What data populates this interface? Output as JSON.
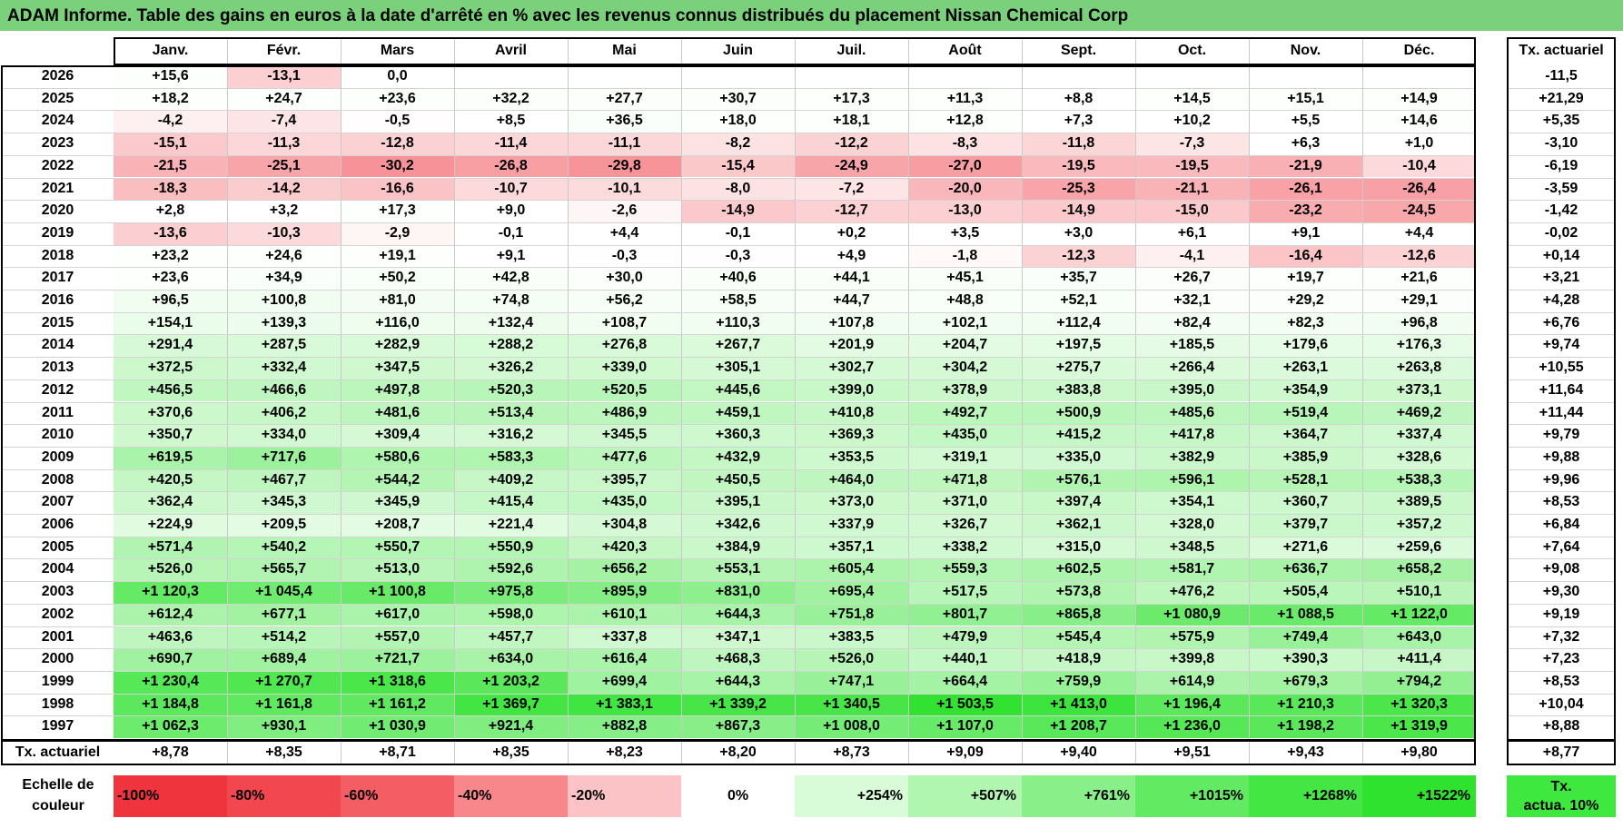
{
  "title": "ADAM Informe. Table des gains en euros à la date d'arrêté en % avec les revenus connus distribués du placement Nissan Chemical Corp",
  "chart_data": {
    "type": "table",
    "months": [
      "Janv.",
      "Févr.",
      "Mars",
      "Avril",
      "Mai",
      "Juin",
      "Juil.",
      "Août",
      "Sept.",
      "Oct.",
      "Nov.",
      "Déc."
    ],
    "rate_header": "Tx. actuariel",
    "rows": [
      {
        "year": "2026",
        "cells": [
          "+15,6",
          "-13,1",
          "0,0",
          "",
          "",
          "",
          "",
          "",
          "",
          "",
          "",
          ""
        ],
        "rate": "-11,5"
      },
      {
        "year": "2025",
        "cells": [
          "+18,2",
          "+24,7",
          "+23,6",
          "+32,2",
          "+27,7",
          "+30,7",
          "+17,3",
          "+11,3",
          "+8,8",
          "+14,5",
          "+15,1",
          "+14,9"
        ],
        "rate": "+21,29"
      },
      {
        "year": "2024",
        "cells": [
          "-4,2",
          "-7,4",
          "-0,5",
          "+8,5",
          "+36,5",
          "+18,0",
          "+18,1",
          "+12,8",
          "+7,3",
          "+10,2",
          "+5,5",
          "+14,6"
        ],
        "rate": "+5,35"
      },
      {
        "year": "2023",
        "cells": [
          "-15,1",
          "-11,3",
          "-12,8",
          "-11,4",
          "-11,1",
          "-8,2",
          "-12,2",
          "-8,3",
          "-11,8",
          "-7,3",
          "+6,3",
          "+1,0"
        ],
        "rate": "-3,10"
      },
      {
        "year": "2022",
        "cells": [
          "-21,5",
          "-25,1",
          "-30,2",
          "-26,8",
          "-29,8",
          "-15,4",
          "-24,9",
          "-27,0",
          "-19,5",
          "-19,5",
          "-21,9",
          "-10,4"
        ],
        "rate": "-6,19"
      },
      {
        "year": "2021",
        "cells": [
          "-18,3",
          "-14,2",
          "-16,6",
          "-10,7",
          "-10,1",
          "-8,0",
          "-7,2",
          "-20,0",
          "-25,3",
          "-21,1",
          "-26,1",
          "-26,4"
        ],
        "rate": "-3,59"
      },
      {
        "year": "2020",
        "cells": [
          "+2,8",
          "+3,2",
          "+17,3",
          "+9,0",
          "-2,6",
          "-14,9",
          "-12,7",
          "-13,0",
          "-14,9",
          "-15,0",
          "-23,2",
          "-24,5"
        ],
        "rate": "-1,42"
      },
      {
        "year": "2019",
        "cells": [
          "-13,6",
          "-10,3",
          "-2,9",
          "-0,1",
          "+4,4",
          "-0,1",
          "+0,2",
          "+3,5",
          "+3,0",
          "+6,1",
          "+9,1",
          "+4,4"
        ],
        "rate": "-0,02"
      },
      {
        "year": "2018",
        "cells": [
          "+23,2",
          "+24,6",
          "+19,1",
          "+9,1",
          "-0,3",
          "-0,3",
          "+4,9",
          "-1,8",
          "-12,3",
          "-4,1",
          "-16,4",
          "-12,6"
        ],
        "rate": "+0,14"
      },
      {
        "year": "2017",
        "cells": [
          "+23,6",
          "+34,9",
          "+50,2",
          "+42,8",
          "+30,0",
          "+40,6",
          "+44,1",
          "+45,1",
          "+35,7",
          "+26,7",
          "+19,7",
          "+21,6"
        ],
        "rate": "+3,21"
      },
      {
        "year": "2016",
        "cells": [
          "+96,5",
          "+100,8",
          "+81,0",
          "+74,8",
          "+56,2",
          "+58,5",
          "+44,7",
          "+48,8",
          "+52,1",
          "+32,1",
          "+29,2",
          "+29,1"
        ],
        "rate": "+4,28"
      },
      {
        "year": "2015",
        "cells": [
          "+154,1",
          "+139,3",
          "+116,0",
          "+132,4",
          "+108,7",
          "+110,3",
          "+107,8",
          "+102,1",
          "+112,4",
          "+82,4",
          "+82,3",
          "+96,8"
        ],
        "rate": "+6,76"
      },
      {
        "year": "2014",
        "cells": [
          "+291,4",
          "+287,5",
          "+282,9",
          "+288,2",
          "+276,8",
          "+267,7",
          "+201,9",
          "+204,7",
          "+197,5",
          "+185,5",
          "+179,6",
          "+176,3"
        ],
        "rate": "+9,74"
      },
      {
        "year": "2013",
        "cells": [
          "+372,5",
          "+332,4",
          "+347,5",
          "+326,2",
          "+339,0",
          "+305,1",
          "+302,7",
          "+304,2",
          "+275,7",
          "+266,4",
          "+263,1",
          "+263,8"
        ],
        "rate": "+10,55"
      },
      {
        "year": "2012",
        "cells": [
          "+456,5",
          "+466,6",
          "+497,8",
          "+520,3",
          "+520,5",
          "+445,6",
          "+399,0",
          "+378,9",
          "+383,8",
          "+395,0",
          "+354,9",
          "+373,1"
        ],
        "rate": "+11,64"
      },
      {
        "year": "2011",
        "cells": [
          "+370,6",
          "+406,2",
          "+481,6",
          "+513,4",
          "+486,9",
          "+459,1",
          "+410,8",
          "+492,7",
          "+500,9",
          "+485,6",
          "+519,4",
          "+469,2"
        ],
        "rate": "+11,44"
      },
      {
        "year": "2010",
        "cells": [
          "+350,7",
          "+334,0",
          "+309,4",
          "+316,2",
          "+345,5",
          "+360,3",
          "+369,3",
          "+435,0",
          "+415,2",
          "+417,8",
          "+364,7",
          "+337,4"
        ],
        "rate": "+9,79"
      },
      {
        "year": "2009",
        "cells": [
          "+619,5",
          "+717,6",
          "+580,6",
          "+583,3",
          "+477,6",
          "+432,9",
          "+353,5",
          "+319,1",
          "+335,0",
          "+382,9",
          "+385,9",
          "+328,6"
        ],
        "rate": "+9,88"
      },
      {
        "year": "2008",
        "cells": [
          "+420,5",
          "+467,7",
          "+544,2",
          "+409,2",
          "+395,7",
          "+450,5",
          "+464,0",
          "+471,8",
          "+576,1",
          "+596,1",
          "+528,1",
          "+538,3"
        ],
        "rate": "+9,96"
      },
      {
        "year": "2007",
        "cells": [
          "+362,4",
          "+345,3",
          "+345,9",
          "+415,4",
          "+435,0",
          "+395,1",
          "+373,0",
          "+371,0",
          "+397,4",
          "+354,1",
          "+360,7",
          "+389,5"
        ],
        "rate": "+8,53"
      },
      {
        "year": "2006",
        "cells": [
          "+224,9",
          "+209,5",
          "+208,7",
          "+221,4",
          "+304,8",
          "+342,6",
          "+337,9",
          "+326,7",
          "+362,1",
          "+328,0",
          "+379,7",
          "+357,2"
        ],
        "rate": "+6,84"
      },
      {
        "year": "2005",
        "cells": [
          "+571,4",
          "+540,2",
          "+550,7",
          "+550,9",
          "+420,3",
          "+384,9",
          "+357,1",
          "+338,2",
          "+315,0",
          "+348,5",
          "+271,6",
          "+259,6"
        ],
        "rate": "+7,64"
      },
      {
        "year": "2004",
        "cells": [
          "+526,0",
          "+565,7",
          "+513,0",
          "+592,6",
          "+656,2",
          "+553,1",
          "+605,4",
          "+559,3",
          "+602,5",
          "+581,7",
          "+636,7",
          "+658,2"
        ],
        "rate": "+9,08"
      },
      {
        "year": "2003",
        "cells": [
          "+1 120,3",
          "+1 045,4",
          "+1 100,8",
          "+975,8",
          "+895,9",
          "+831,0",
          "+695,4",
          "+517,5",
          "+573,8",
          "+476,2",
          "+505,4",
          "+510,1"
        ],
        "rate": "+9,30"
      },
      {
        "year": "2002",
        "cells": [
          "+612,4",
          "+677,1",
          "+617,0",
          "+598,0",
          "+610,1",
          "+644,3",
          "+751,8",
          "+801,7",
          "+865,8",
          "+1 080,9",
          "+1 088,5",
          "+1 122,0"
        ],
        "rate": "+9,19"
      },
      {
        "year": "2001",
        "cells": [
          "+463,6",
          "+514,2",
          "+557,0",
          "+457,7",
          "+337,8",
          "+347,1",
          "+383,5",
          "+479,9",
          "+545,4",
          "+575,9",
          "+749,4",
          "+643,0"
        ],
        "rate": "+7,32"
      },
      {
        "year": "2000",
        "cells": [
          "+690,7",
          "+689,4",
          "+721,7",
          "+634,0",
          "+616,4",
          "+468,3",
          "+526,0",
          "+440,1",
          "+418,9",
          "+399,8",
          "+390,3",
          "+411,4"
        ],
        "rate": "+7,23"
      },
      {
        "year": "1999",
        "cells": [
          "+1 230,4",
          "+1 270,7",
          "+1 318,6",
          "+1 203,2",
          "+699,4",
          "+644,3",
          "+747,1",
          "+664,4",
          "+759,9",
          "+614,9",
          "+679,3",
          "+794,2"
        ],
        "rate": "+8,53"
      },
      {
        "year": "1998",
        "cells": [
          "+1 184,8",
          "+1 161,8",
          "+1 161,2",
          "+1 369,7",
          "+1 383,1",
          "+1 339,2",
          "+1 340,5",
          "+1 503,5",
          "+1 413,0",
          "+1 196,4",
          "+1 210,3",
          "+1 320,3"
        ],
        "rate": "+10,04"
      },
      {
        "year": "1997",
        "cells": [
          "+1 062,3",
          "+930,1",
          "+1 030,9",
          "+921,4",
          "+882,8",
          "+867,3",
          "+1 008,0",
          "+1 107,0",
          "+1 208,7",
          "+1 236,0",
          "+1 198,2",
          "+1 319,9"
        ],
        "rate": "+8,88"
      }
    ],
    "total_row": {
      "label": "Tx. actuariel",
      "cells": [
        "+8,78",
        "+8,35",
        "+8,71",
        "+8,35",
        "+8,23",
        "+8,20",
        "+8,73",
        "+9,09",
        "+9,40",
        "+9,51",
        "+9,43",
        "+9,80"
      ],
      "rate": "+8,77"
    },
    "legend": {
      "label_line1": "Echelle de",
      "label_line2": "couleur",
      "stops": [
        {
          "label": "-100%",
          "value": -100,
          "color": "#f0343e"
        },
        {
          "label": "-80%",
          "value": -80,
          "color": "#f2474f"
        },
        {
          "label": "-60%",
          "value": -60,
          "color": "#f45d63"
        },
        {
          "label": "-40%",
          "value": -40,
          "color": "#f7878b"
        },
        {
          "label": "-20%",
          "value": -20,
          "color": "#fbc3c5"
        },
        {
          "label": "0%",
          "value": 0,
          "color": "#ffffff"
        },
        {
          "label": "+254%",
          "value": 254,
          "color": "#d8fbd8"
        },
        {
          "label": "+507%",
          "value": 507,
          "color": "#b0f5b0"
        },
        {
          "label": "+761%",
          "value": 761,
          "color": "#89f089"
        },
        {
          "label": "+1015%",
          "value": 1015,
          "color": "#62ea62"
        },
        {
          "label": "+1268%",
          "value": 1268,
          "color": "#44e644"
        },
        {
          "label": "+1522%",
          "value": 1522,
          "color": "#2ee22e"
        }
      ],
      "actua_line1": "Tx.",
      "actua_line2": "actua. 10%",
      "actua_color": "#3ee83e"
    },
    "colors": {
      "title_bg": "#7bd07b",
      "negative_max": "#f0343e",
      "positive_max": "#2ee22e"
    }
  }
}
